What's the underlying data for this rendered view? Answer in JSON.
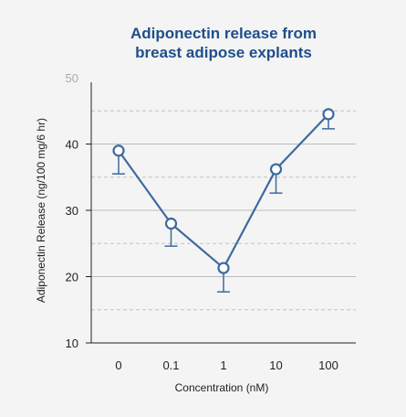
{
  "chart_data": {
    "type": "line",
    "title_lines": [
      "Adiponectin release from",
      "breast adipose explants"
    ],
    "xlabel": "Concentration (nM)",
    "ylabel": "Adiponectin Release (ng/100 mg/6 hr)",
    "categories": [
      "0",
      "0.1",
      "1",
      "10",
      "100"
    ],
    "values": [
      39.0,
      28.0,
      21.3,
      36.2,
      44.5
    ],
    "error_lower": [
      35.5,
      24.6,
      17.7,
      32.6,
      42.3
    ],
    "ylim": [
      10,
      50
    ],
    "yticks": [
      "10",
      "20",
      "30",
      "40",
      "50"
    ],
    "grid": {
      "solid_at": [
        20,
        30,
        40
      ],
      "dashed_at": [
        15,
        25,
        35,
        45
      ]
    },
    "colors": {
      "series": "#3d6a9e",
      "title": "#1f4e8c",
      "grid_solid": "#bbbbbb",
      "grid_dashed": "#c2c2c2",
      "background": "#f4f4f4"
    }
  }
}
